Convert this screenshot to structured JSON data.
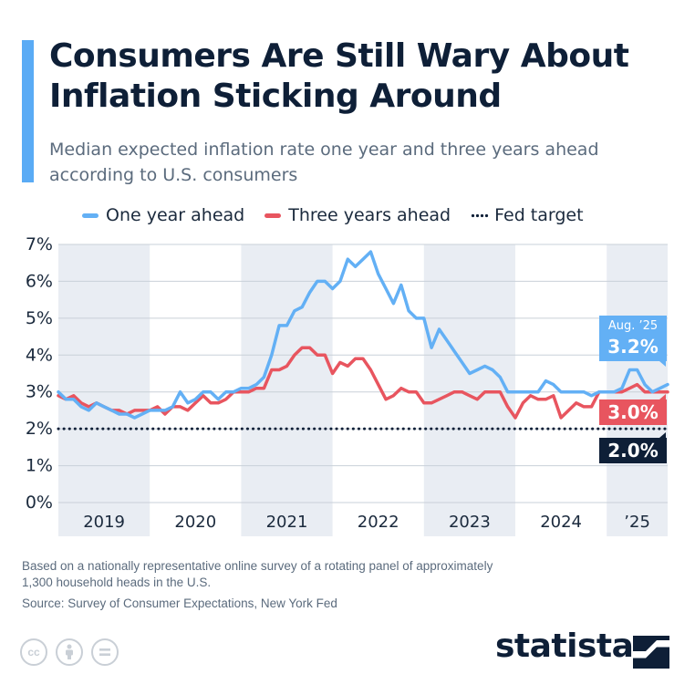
{
  "header": {
    "title": "Consumers Are Still Wary About Inflation Sticking Around",
    "subtitle": "Median expected inflation rate one year and three years ahead according to U.S. consumers"
  },
  "colors": {
    "accent": "#5aabf5",
    "one_year": "#63b0f5",
    "three_year": "#e8555f",
    "fed": "#0e1f37",
    "band": "#e9edf3"
  },
  "legend": {
    "one_year": "One year ahead",
    "three_year": "Three years ahead",
    "fed": "Fed target"
  },
  "chart_data": {
    "type": "line",
    "title": "Consumers Are Still Wary About Inflation Sticking Around",
    "subtitle": "Median expected inflation rate one year and three years ahead according to U.S. consumers",
    "xlabel": "",
    "ylabel": "",
    "ylim": [
      0,
      7
    ],
    "yticks": [
      0,
      1,
      2,
      3,
      4,
      5,
      6,
      7
    ],
    "ytick_labels": [
      "0%",
      "1%",
      "2%",
      "3%",
      "4%",
      "5%",
      "6%",
      "7%"
    ],
    "x_start": "Jan 2019",
    "x_end": "Aug 2025",
    "year_labels": [
      "2019",
      "2020",
      "2021",
      "2022",
      "2023",
      "2024",
      "’25"
    ],
    "series": [
      {
        "name": "One year ahead",
        "values": [
          3.0,
          2.8,
          2.8,
          2.6,
          2.5,
          2.7,
          2.6,
          2.5,
          2.4,
          2.4,
          2.3,
          2.4,
          2.5,
          2.5,
          2.5,
          2.6,
          3.0,
          2.7,
          2.8,
          3.0,
          3.0,
          2.8,
          3.0,
          3.0,
          3.1,
          3.1,
          3.2,
          3.4,
          4.0,
          4.8,
          4.8,
          5.2,
          5.3,
          5.7,
          6.0,
          6.0,
          5.8,
          6.0,
          6.6,
          6.4,
          6.6,
          6.8,
          6.2,
          5.8,
          5.4,
          5.9,
          5.2,
          5.0,
          5.0,
          4.2,
          4.7,
          4.4,
          4.1,
          3.8,
          3.5,
          3.6,
          3.7,
          3.6,
          3.4,
          3.0,
          3.0,
          3.0,
          3.0,
          3.0,
          3.3,
          3.2,
          3.0,
          3.0,
          3.0,
          3.0,
          2.9,
          3.0,
          3.0,
          3.0,
          3.1,
          3.6,
          3.6,
          3.2,
          3.0,
          3.1,
          3.2
        ],
        "color": "#63b0f5"
      },
      {
        "name": "Three years ahead",
        "values": [
          2.9,
          2.8,
          2.9,
          2.7,
          2.6,
          2.7,
          2.6,
          2.5,
          2.5,
          2.4,
          2.5,
          2.5,
          2.5,
          2.6,
          2.4,
          2.6,
          2.6,
          2.5,
          2.7,
          2.9,
          2.7,
          2.7,
          2.8,
          3.0,
          3.0,
          3.0,
          3.1,
          3.1,
          3.6,
          3.6,
          3.7,
          4.0,
          4.2,
          4.2,
          4.0,
          4.0,
          3.5,
          3.8,
          3.7,
          3.9,
          3.9,
          3.6,
          3.2,
          2.8,
          2.9,
          3.1,
          3.0,
          3.0,
          2.7,
          2.7,
          2.8,
          2.9,
          3.0,
          3.0,
          2.9,
          2.8,
          3.0,
          3.0,
          3.0,
          2.6,
          2.3,
          2.7,
          2.9,
          2.8,
          2.8,
          2.9,
          2.3,
          2.5,
          2.7,
          2.6,
          2.6,
          3.0,
          3.0,
          3.0,
          3.0,
          3.1,
          3.2,
          3.0,
          3.0,
          3.0,
          3.0
        ],
        "color": "#e8555f"
      },
      {
        "name": "Fed target",
        "values": [
          2.0,
          2.0
        ],
        "color": "#0e1f37"
      }
    ],
    "end_labels": {
      "one_year_date": "Aug. ’25",
      "one_year_value": "3.2%",
      "three_year_value": "3.0%",
      "fed_value": "2.0%"
    }
  },
  "footer": {
    "note": "Based on a nationally representative online survey of a rotating panel of approximately 1,300 household heads in the U.S.",
    "source": "Source: Survey of Consumer Expectations, New York Fed",
    "brand": "statista",
    "license_icons": [
      "creative-commons-icon",
      "attribution-icon",
      "no-derivatives-icon"
    ]
  }
}
